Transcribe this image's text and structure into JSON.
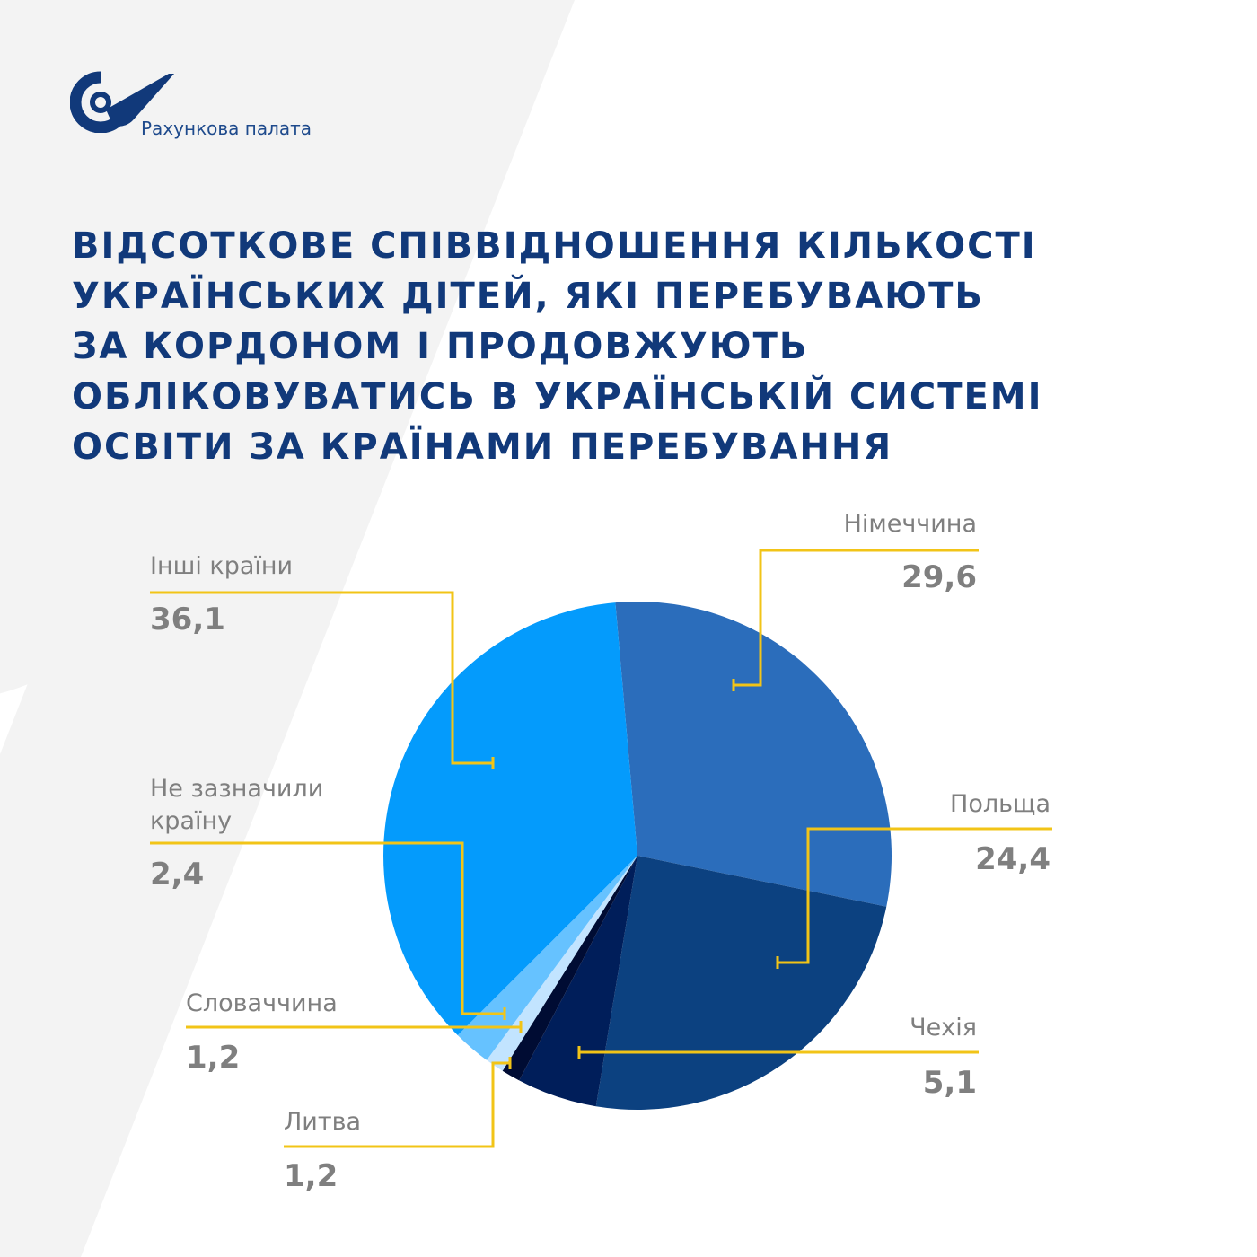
{
  "brand": {
    "name": "Рахункова палата",
    "colors": {
      "primary": "#11397a",
      "accent": "#f2c417",
      "label": "#7f7f7f"
    }
  },
  "title_lines": [
    "Відсоткове співвідношення кількості",
    "українських дітей, які перебувають",
    "за кордоном і продовжують",
    "обліковуватись в українській системі",
    "освіти за країнами перебування"
  ],
  "chart_data": {
    "type": "pie",
    "title": "Відсоткове співвідношення кількості українських дітей, які перебувають за кордоном і продовжують обліковуватись в українській системі освіти за країнами перебування",
    "start_angle_deg": 355,
    "slices": [
      {
        "label": "Німеччина",
        "label_lines": [
          "Німеччина"
        ],
        "value": 29.6,
        "value_text": "29,6",
        "color": "#2b6dbb"
      },
      {
        "label": "Польща",
        "label_lines": [
          "Польща"
        ],
        "value": 24.4,
        "value_text": "24,4",
        "color": "#0c4180"
      },
      {
        "label": "Чехія",
        "label_lines": [
          "Чехія"
        ],
        "value": 5.1,
        "value_text": "5,1",
        "color": "#001e5a"
      },
      {
        "label": "Литва",
        "label_lines": [
          "Литва"
        ],
        "value": 1.2,
        "value_text": "1,2",
        "color": "#000c33"
      },
      {
        "label": "Словаччина",
        "label_lines": [
          "Словаччина"
        ],
        "value": 1.2,
        "value_text": "1,2",
        "color": "#c2e4ff"
      },
      {
        "label": "Не зазначили країну",
        "label_lines": [
          "Не зазначили",
          "країну"
        ],
        "value": 2.4,
        "value_text": "2,4",
        "color": "#66c2ff"
      },
      {
        "label": "Інші країни",
        "label_lines": [
          "Інші країни"
        ],
        "value": 36.1,
        "value_text": "36,1",
        "color": "#049bfc"
      }
    ]
  }
}
